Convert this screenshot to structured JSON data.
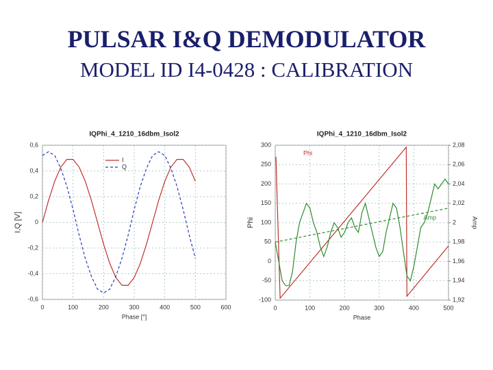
{
  "header": {
    "title": "PULSAR I&Q DEMODULATOR",
    "subtitle": "MODEL ID I4-0428 : CALIBRATION"
  },
  "chart_data": [
    {
      "type": "line",
      "title": "IQPhi_4_1210_16dbm_Isol2",
      "xlabel": "Phase [°]",
      "ylabel": "I,Q [V]",
      "xlim": [
        0,
        600
      ],
      "xticks": [
        0,
        100,
        200,
        300,
        400,
        500,
        600
      ],
      "ylim": [
        -0.6,
        0.6
      ],
      "yticks": [
        {
          "value": -0.6,
          "label": "-0,6"
        },
        {
          "value": -0.4,
          "label": "-0,4"
        },
        {
          "value": -0.2,
          "label": "-0,2"
        },
        0,
        {
          "value": 0.2,
          "label": "0,2"
        },
        {
          "value": 0.4,
          "label": "0,4"
        },
        {
          "value": 0.6,
          "label": "0,6"
        }
      ],
      "grid": true,
      "legend": "top",
      "series": [
        {
          "name": "I",
          "color": "#c0302a",
          "style": "solid",
          "x": [
            0,
            20,
            40,
            60,
            80,
            100,
            120,
            140,
            160,
            180,
            200,
            220,
            240,
            260,
            280,
            300,
            320,
            340,
            360,
            380,
            400,
            420,
            440,
            460,
            480,
            500
          ],
          "values": [
            0,
            0.17,
            0.32,
            0.43,
            0.49,
            0.49,
            0.43,
            0.32,
            0.17,
            0,
            -0.17,
            -0.32,
            -0.43,
            -0.49,
            -0.49,
            -0.43,
            -0.32,
            -0.17,
            0,
            0.17,
            0.32,
            0.43,
            0.49,
            0.49,
            0.43,
            0.32
          ]
        },
        {
          "name": "Q",
          "color": "#2a3ab8",
          "style": "dashed",
          "x": [
            0,
            20,
            40,
            60,
            80,
            100,
            120,
            140,
            160,
            180,
            200,
            220,
            240,
            260,
            280,
            300,
            320,
            340,
            360,
            380,
            400,
            420,
            440,
            460,
            480,
            500
          ],
          "values": [
            0.52,
            0.55,
            0.52,
            0.42,
            0.28,
            0.1,
            -0.1,
            -0.28,
            -0.42,
            -0.52,
            -0.55,
            -0.52,
            -0.42,
            -0.28,
            -0.1,
            0.1,
            0.28,
            0.42,
            0.52,
            0.55,
            0.52,
            0.42,
            0.28,
            0.1,
            -0.1,
            -0.28
          ]
        }
      ]
    },
    {
      "type": "line",
      "title": "IQPhi_4_1210_16dbm_Isol2",
      "xlabel": "Phase",
      "ylabel": "Phi",
      "y2label": "Amp",
      "xlim": [
        0,
        500
      ],
      "xticks": [
        0,
        100,
        200,
        300,
        400,
        500
      ],
      "ylim": [
        -100,
        300
      ],
      "yticks": [
        -100,
        -50,
        0,
        50,
        100,
        150,
        200,
        250,
        300
      ],
      "y2lim": [
        1.92,
        2.08
      ],
      "y2ticks": [
        {
          "value": 1.92,
          "label": "1,92"
        },
        {
          "value": 1.94,
          "label": "1,94"
        },
        {
          "value": 1.96,
          "label": "1,96"
        },
        {
          "value": 1.98,
          "label": "1,98"
        },
        2,
        {
          "value": 2.02,
          "label": "2,02"
        },
        {
          "value": 2.04,
          "label": "2,04"
        },
        {
          "value": 2.06,
          "label": "2,06"
        },
        {
          "value": 2.08,
          "label": "2,08"
        }
      ],
      "grid": true,
      "series": [
        {
          "name": "Phi",
          "color": "#c0302a",
          "style": "solid",
          "x": [
            2,
            14,
            378,
            380,
            500
          ],
          "values": [
            270,
            -95,
            295,
            -90,
            40
          ]
        },
        {
          "name": "Amp",
          "color": "#2e8a2e",
          "style": "solid",
          "axis": "y2",
          "x": [
            0,
            10,
            20,
            30,
            40,
            50,
            60,
            70,
            80,
            90,
            100,
            110,
            120,
            130,
            140,
            150,
            160,
            170,
            180,
            190,
            200,
            210,
            220,
            230,
            240,
            250,
            260,
            270,
            280,
            290,
            300,
            310,
            320,
            330,
            340,
            350,
            360,
            370,
            380,
            390,
            400,
            410,
            420,
            430,
            440,
            450,
            460,
            470,
            480,
            490,
            500
          ],
          "values": [
            1.98,
            1.96,
            1.94,
            1.935,
            1.935,
            1.95,
            1.98,
            2,
            2.01,
            2.02,
            2.015,
            2,
            1.99,
            1.975,
            1.965,
            1.975,
            1.99,
            2,
            1.995,
            1.985,
            1.99,
            2,
            2.005,
            1.995,
            1.99,
            2.01,
            2.02,
            2.005,
            1.99,
            1.975,
            1.965,
            1.97,
            1.99,
            2.005,
            2.02,
            2.015,
            1.995,
            1.97,
            1.945,
            1.94,
            1.955,
            1.975,
            1.995,
            2,
            2.01,
            2.025,
            2.04,
            2.035,
            2.04,
            2.045,
            2.04
          ]
        },
        {
          "color": "#2e8a2e",
          "style": "dashed",
          "axis": "y2",
          "x": [
            0,
            500
          ],
          "values": [
            1.98,
            2.015
          ]
        }
      ]
    }
  ]
}
